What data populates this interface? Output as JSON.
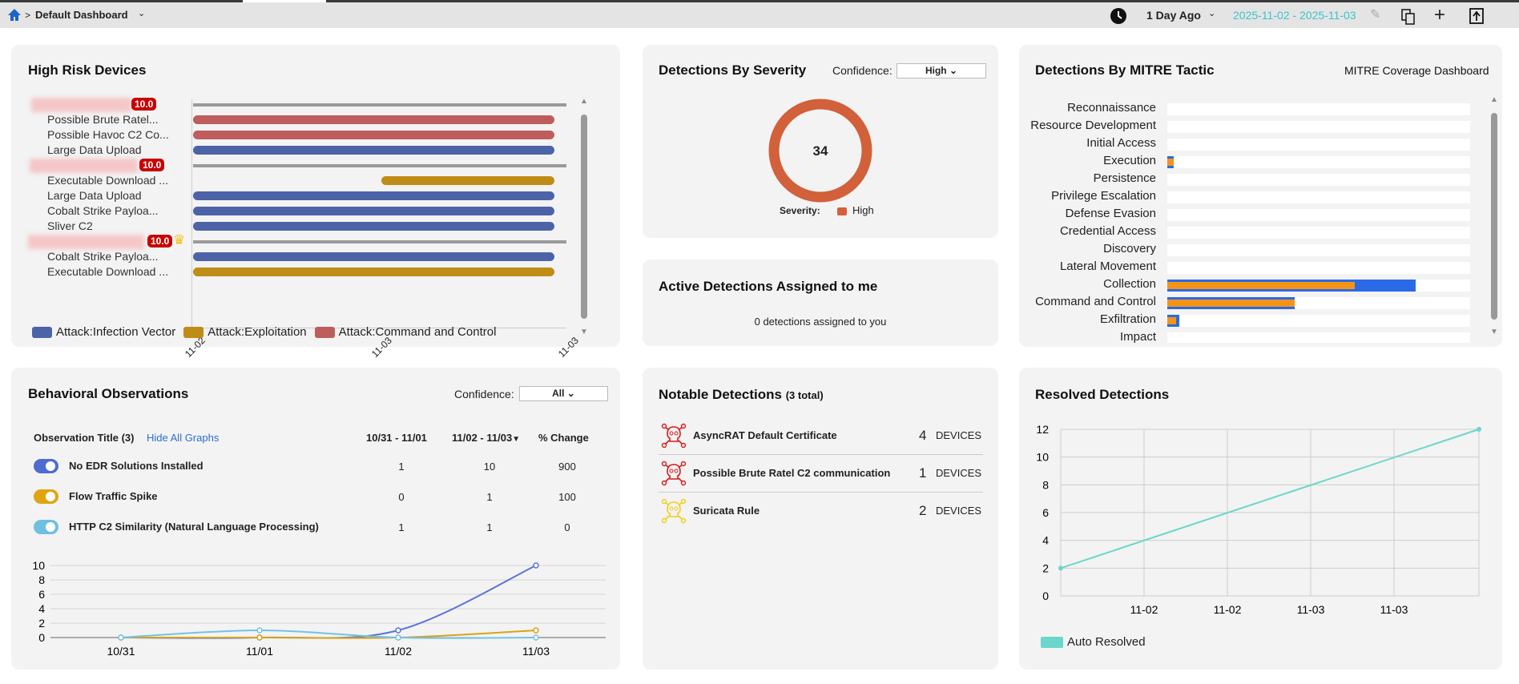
{
  "header": {
    "breadcrumb_sep": ">",
    "dashboard": "Default Dashboard",
    "time_range": "1 Day Ago",
    "date_range": "2025-11-02 - 2025-11-03",
    "accent": "#3cc4c8"
  },
  "high_risk": {
    "title": "High Risk Devices",
    "axis_ticks": [
      "11-02",
      "11-03",
      "11-03"
    ],
    "devices": [
      {
        "score": "10.0",
        "crown": false,
        "rows": [
          {
            "label": "Possible Brute Ratel...",
            "cat": 2,
            "start": 0
          },
          {
            "label": "Possible Havoc C2 Co...",
            "cat": 2,
            "start": 0
          },
          {
            "label": "Large Data Upload",
            "cat": 0,
            "start": 0
          }
        ]
      },
      {
        "score": "10.0",
        "crown": false,
        "rows": [
          {
            "label": "Executable Download ...",
            "cat": 1,
            "start": 0.52
          },
          {
            "label": "Large Data Upload",
            "cat": 0,
            "start": 0
          },
          {
            "label": "Cobalt Strike Payloa...",
            "cat": 0,
            "start": 0
          },
          {
            "label": "Sliver C2",
            "cat": 0,
            "start": 0
          }
        ]
      },
      {
        "score": "10.0",
        "crown": true,
        "rows": [
          {
            "label": "Cobalt Strike Payloa...",
            "cat": 0,
            "start": 0
          },
          {
            "label": "Executable Download ...",
            "cat": 1,
            "start": 0
          }
        ]
      }
    ],
    "legend": [
      {
        "label": "Attack:Infection Vector",
        "color": "#4c63a8"
      },
      {
        "label": "Attack:Exploitation",
        "color": "#bf8c17"
      },
      {
        "label": "Attack:Command and Control",
        "color": "#bd5e5c"
      }
    ]
  },
  "severity": {
    "title": "Detections By Severity",
    "confidence_label": "Confidence:",
    "confidence_value": "High",
    "total": "34",
    "legend_label": "Severity:",
    "legend_item": "High",
    "color": "#d2603a"
  },
  "active": {
    "title": "Active Detections Assigned to me",
    "message": "0 detections assigned to you"
  },
  "mitre": {
    "title": "Detections By MITRE Tactic",
    "link": "MITRE Coverage Dashboard",
    "tactics": [
      {
        "name": "Reconnaissance",
        "blue": 0,
        "orange": 0
      },
      {
        "name": "Resource Development",
        "blue": 0,
        "orange": 0
      },
      {
        "name": "Initial Access",
        "blue": 0,
        "orange": 0
      },
      {
        "name": "Execution",
        "blue": 0.02,
        "orange": 0.02
      },
      {
        "name": "Persistence",
        "blue": 0,
        "orange": 0
      },
      {
        "name": "Privilege Escalation",
        "blue": 0,
        "orange": 0
      },
      {
        "name": "Defense Evasion",
        "blue": 0,
        "orange": 0
      },
      {
        "name": "Credential Access",
        "blue": 0,
        "orange": 0
      },
      {
        "name": "Discovery",
        "blue": 0,
        "orange": 0
      },
      {
        "name": "Lateral Movement",
        "blue": 0,
        "orange": 0
      },
      {
        "name": "Collection",
        "blue": 0.82,
        "orange": 0.62
      },
      {
        "name": "Command and Control",
        "blue": 0.42,
        "orange": 0.42
      },
      {
        "name": "Exfiltration",
        "blue": 0.04,
        "orange": 0.03
      },
      {
        "name": "Impact",
        "blue": 0,
        "orange": 0
      }
    ]
  },
  "behavioral": {
    "title": "Behavioral Observations",
    "confidence_label": "Confidence:",
    "confidence_value": "All",
    "col_title": "Observation Title (3)",
    "hide_link": "Hide All Graphs",
    "col1": "10/31 - 11/01",
    "col2": "11/02 - 11/03",
    "sort_glyph": "▼",
    "col3": "% Change",
    "rows": [
      {
        "title": "No EDR Solutions Installed",
        "a": "1",
        "b": "10",
        "c": "900",
        "color": "#4f6ccf"
      },
      {
        "title": "Flow Traffic Spike",
        "a": "0",
        "b": "1",
        "c": "100",
        "color": "#e0a411"
      },
      {
        "title": "HTTP C2 Similarity (Natural Language Processing)",
        "a": "1",
        "b": "1",
        "c": "0",
        "color": "#6ebfe0"
      }
    ]
  },
  "chart_data": [
    {
      "type": "line",
      "title": "",
      "x": [
        "10/31",
        "11/01",
        "11/02",
        "11/03"
      ],
      "yticks": [
        0,
        2,
        4,
        6,
        8,
        10
      ],
      "ylim": [
        0,
        10
      ],
      "series": [
        {
          "values": [
            0,
            0,
            1,
            10
          ],
          "color": "#5b74d6"
        },
        {
          "values": [
            0,
            0,
            0,
            1
          ],
          "color": "#d9a21a"
        },
        {
          "values": [
            0,
            1,
            0,
            0
          ],
          "color": "#72c3e4"
        }
      ]
    },
    {
      "type": "line",
      "title": "Resolved Detections",
      "xticks": [
        "11-02",
        "11-02",
        "11-03",
        "11-03"
      ],
      "yticks": [
        0,
        2,
        4,
        6,
        8,
        10,
        12
      ],
      "ylim": [
        0,
        12
      ],
      "series": [
        {
          "name": "Auto Resolved",
          "values": [
            2,
            12
          ],
          "color": "#6bd6cc"
        }
      ]
    }
  ],
  "notable": {
    "title": "Notable Detections",
    "count": "(3 total)",
    "unit": "DEVICES",
    "items": [
      {
        "name": "AsyncRAT Default Certificate",
        "count": "4",
        "color": "#d51c1c"
      },
      {
        "name": "Possible Brute Ratel C2 communication",
        "count": "1",
        "color": "#d51c1c"
      },
      {
        "name": "Suricata Rule",
        "count": "2",
        "color": "#f0cf1a"
      }
    ]
  }
}
